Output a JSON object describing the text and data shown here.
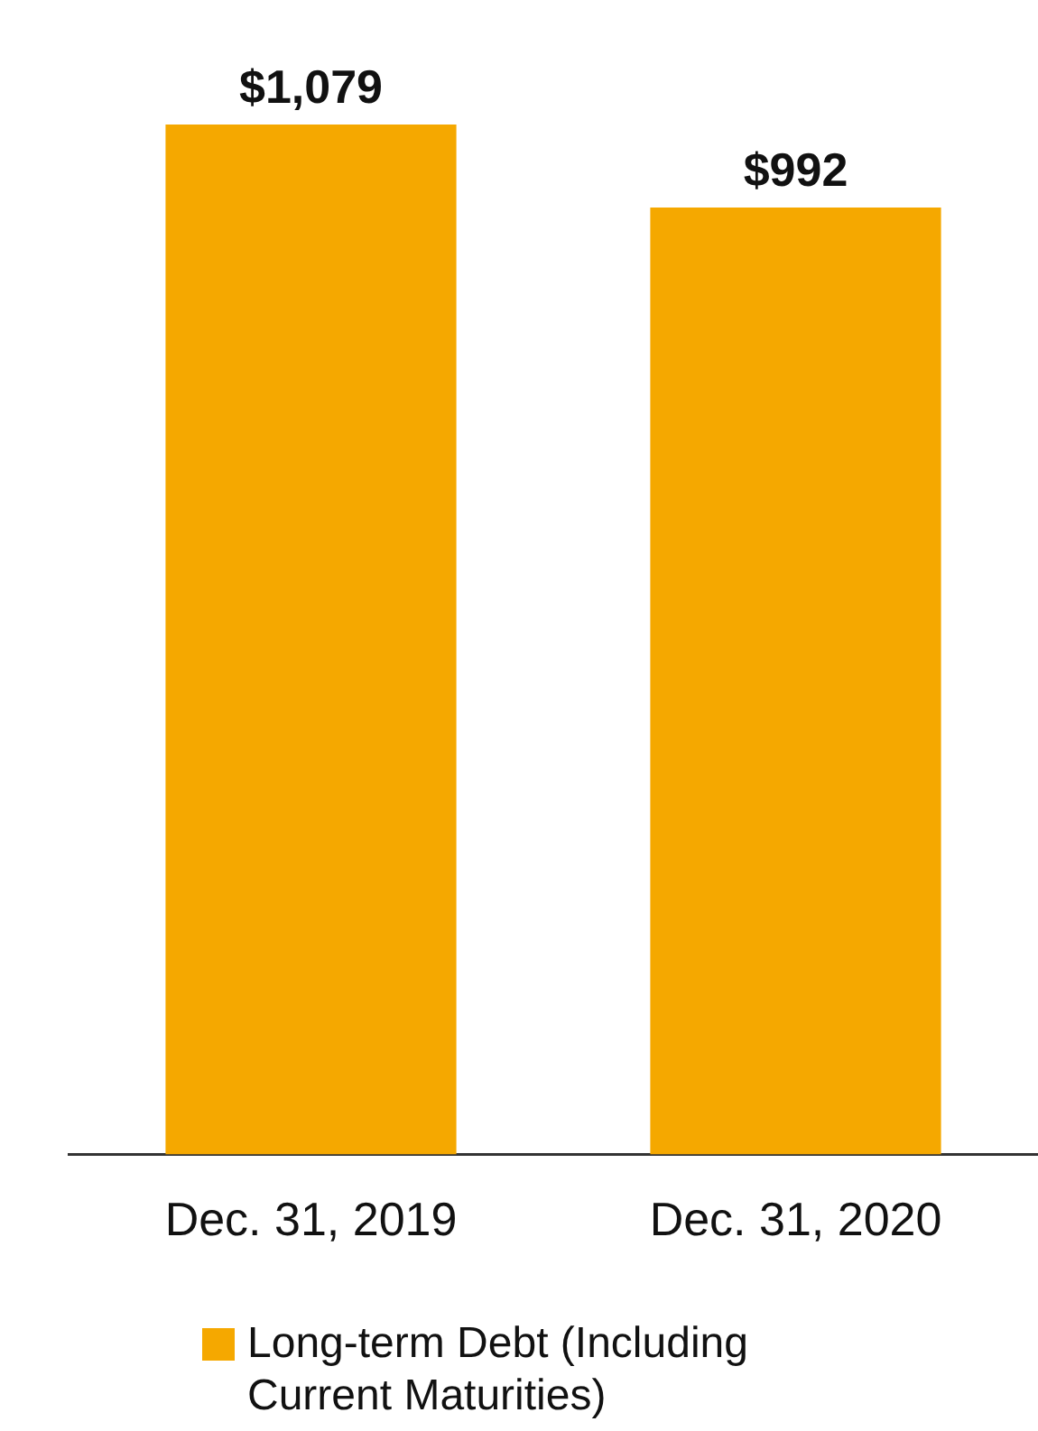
{
  "chart_data": {
    "type": "bar",
    "categories": [
      "Dec. 31, 2019",
      "Dec. 31, 2020"
    ],
    "series": [
      {
        "name": "Long-term Debt (Including Current Maturities)",
        "color": "#f5a800",
        "values": [
          1079,
          992
        ],
        "value_labels": [
          "$1,079",
          "$992"
        ]
      }
    ],
    "legend": "bottom",
    "grid": false
  }
}
